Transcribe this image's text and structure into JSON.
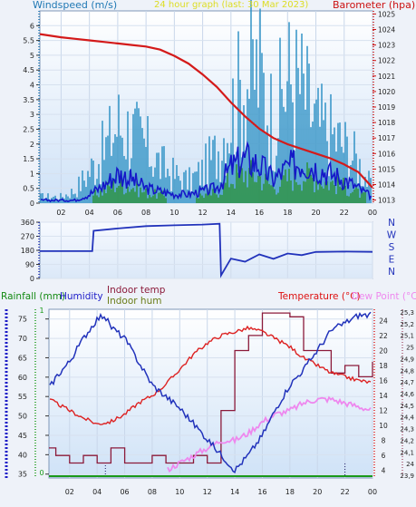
{
  "charts": {
    "wind_baro": {
      "title": "24 hour graph (last: 30 Mar 2023)",
      "left_label": "Windspeed (m/s)",
      "right_label": "Barometer (hpa)",
      "left_ticks": [
        "0",
        "0.5",
        "1",
        "1.5",
        "2",
        "2.5",
        "3",
        "3.5",
        "4",
        "4.5",
        "5",
        "5.5",
        "6"
      ],
      "right_ticks": [
        "1013",
        "1014",
        "1015",
        "1016",
        "1017",
        "1018",
        "1019",
        "1020",
        "1021",
        "1022",
        "1023",
        "1024",
        "1025"
      ],
      "x_ticks": [
        "02",
        "04",
        "06",
        "08",
        "10",
        "12",
        "14",
        "16",
        "18",
        "20",
        "22",
        "00"
      ]
    },
    "direction": {
      "left_ticks": [
        "0",
        "90",
        "180",
        "270",
        "360"
      ],
      "compass": [
        "N",
        "W",
        "S",
        "E",
        "N"
      ]
    },
    "climate": {
      "label_rainfall": "Rainfall (mm)",
      "label_humidity": "Humidity",
      "label_indoor_temp": "Indoor temp",
      "label_indoor_hum": "Indoor hum",
      "label_temperature": "Temperature (°C)",
      "label_dewpoint": "Dew Point (°C)",
      "rain_ticks": [
        "0",
        "1"
      ],
      "humidity_ticks": [
        "35",
        "40",
        "45",
        "50",
        "55",
        "60",
        "65",
        "70",
        "75"
      ],
      "temp_ticks": [
        "4",
        "6",
        "8",
        "10",
        "12",
        "14",
        "16",
        "18",
        "20",
        "22",
        "24"
      ],
      "indoor_ticks": [
        "23,9",
        "24",
        "24,1",
        "24,2",
        "24,3",
        "24,4",
        "24,5",
        "24,6",
        "24,7",
        "24,8",
        "24,9",
        "25",
        "25,1",
        "25,2",
        "25,3"
      ],
      "x_ticks": [
        "02",
        "04",
        "06",
        "08",
        "10",
        "12",
        "14",
        "16",
        "18",
        "20",
        "22",
        "00"
      ]
    }
  },
  "colors": {
    "wind_gust": "#2a8fc4",
    "wind_avg": "#1518c8",
    "wind_fill": "#1a8a1a",
    "barometer": "#d41a1a",
    "direction": "#2233bb",
    "humidity": "#2233bb",
    "temperature": "#dd2222",
    "dewpoint": "#ee88ee",
    "indoor_temp": "#8b1a3a",
    "indoor_hum": "#556b2f",
    "rain": "#1a9a1a"
  },
  "chart_data": [
    {
      "type": "line",
      "title": "24 hour graph (last: 30 Mar 2023)",
      "x_unit": "hour",
      "xlim": [
        0.5,
        24
      ],
      "ylabel": "Windspeed (m/s)",
      "ylim": [
        0,
        6.5
      ],
      "y2label": "Barometer (hpa)",
      "y2lim": [
        1012.8,
        1025.2
      ],
      "series": [
        {
          "axis": "y2",
          "x": [
            0.5,
            2,
            3,
            4,
            5,
            6,
            7,
            8,
            9,
            10,
            11,
            12,
            13,
            14,
            15,
            16,
            17,
            18,
            19,
            20,
            21,
            22,
            23,
            24
          ],
          "values": [
            1023.7,
            1023.5,
            1023.4,
            1023.3,
            1023.2,
            1023.1,
            1023.0,
            1022.9,
            1022.7,
            1022.3,
            1021.8,
            1021.1,
            1020.3,
            1019.3,
            1018.4,
            1017.6,
            1017.0,
            1016.6,
            1016.3,
            1016.0,
            1015.7,
            1015.3,
            1014.8,
            1013.8
          ]
        },
        {
          "x": [
            0.5,
            2,
            3,
            4,
            5,
            6,
            7,
            8,
            9,
            10,
            11,
            12,
            13,
            14,
            15,
            16,
            17,
            18,
            19,
            20,
            21,
            22,
            23,
            24
          ],
          "values": [
            0.1,
            0.1,
            0.1,
            0.3,
            0.6,
            1.0,
            0.8,
            0.5,
            0.4,
            0.3,
            0.3,
            0.4,
            0.5,
            1.2,
            1.5,
            1.3,
            0.8,
            1.2,
            1.4,
            1.2,
            1.0,
            0.8,
            0.5,
            0.2
          ]
        },
        {
          "x": [
            0.5,
            2,
            3,
            4,
            5,
            6,
            7,
            8,
            9,
            10,
            11,
            12,
            13,
            14,
            15,
            16,
            17,
            18,
            19,
            20,
            21,
            22,
            23,
            24
          ],
          "values": [
            0.3,
            0.3,
            0.6,
            1.5,
            2.4,
            3.7,
            3.3,
            2.6,
            1.8,
            1.3,
            1.0,
            1.5,
            2.4,
            4.2,
            5.8,
            6.2,
            3.8,
            5.8,
            5.4,
            3.7,
            3.3,
            2.7,
            1.9,
            0.6
          ]
        }
      ]
    },
    {
      "type": "line",
      "x_unit": "hour",
      "xlim": [
        0.5,
        24
      ],
      "ylim": [
        0,
        360
      ],
      "series": [
        {
          "x": [
            0.5,
            4.2,
            4.3,
            6,
            8,
            10,
            12,
            13.2,
            13.3,
            14,
            15,
            16,
            17,
            18,
            19,
            20,
            22,
            24
          ],
          "values": [
            175,
            175,
            305,
            320,
            335,
            340,
            345,
            350,
            20,
            110,
            90,
            165,
            145,
            150,
            160,
            165,
            172,
            170
          ]
        }
      ]
    },
    {
      "type": "line",
      "x_unit": "hour",
      "xlim": [
        0.5,
        24
      ],
      "ylabel": "Humidity",
      "ylim": [
        34,
        77.5
      ],
      "y2label": "Temperature (°C)",
      "y2lim": [
        3,
        25.5
      ],
      "series": [
        {
          "axis": "y1",
          "x": [
            0.5,
            1,
            2,
            3,
            4,
            4.5,
            5,
            6,
            7,
            8,
            9,
            10,
            11,
            12,
            13,
            14,
            15,
            16,
            17,
            18,
            19,
            20,
            21,
            22,
            23,
            24
          ],
          "values": [
            57,
            60,
            64,
            70,
            75,
            76,
            73,
            70,
            64,
            58,
            55,
            52,
            48,
            44,
            40,
            36,
            40,
            45,
            52,
            58,
            62,
            67,
            72,
            74,
            76,
            76
          ]
        },
        {
          "axis": "y2",
          "x": [
            0.5,
            1,
            2,
            3,
            4,
            5,
            6,
            7,
            8,
            9,
            10,
            11,
            12,
            13,
            14,
            15,
            16,
            17,
            18,
            19,
            20,
            21,
            22,
            23,
            24
          ],
          "values": [
            13.5,
            13,
            12,
            11,
            10.2,
            10.5,
            11.5,
            13,
            14,
            15.5,
            17.5,
            19.5,
            21,
            22,
            22.5,
            23,
            22.5,
            21.5,
            20.5,
            19,
            18,
            17,
            16.5,
            16,
            15.7
          ]
        },
        {
          "axis": "y2",
          "x": [
            9,
            10,
            11,
            12,
            13,
            14,
            15,
            16,
            17,
            18,
            19,
            20,
            21,
            22,
            23,
            24
          ],
          "values": [
            4,
            5,
            6,
            7,
            8,
            8,
            9,
            10.5,
            11.5,
            12,
            13,
            13.5,
            13.5,
            13,
            12.5,
            12
          ]
        },
        {
          "axis": "y2",
          "x": [
            0.5,
            1,
            2,
            3,
            4,
            5,
            6,
            7,
            8,
            9,
            10,
            11,
            12,
            13,
            14,
            15,
            16,
            17,
            18,
            19,
            20,
            21,
            22,
            23,
            24
          ],
          "values": [
            7,
            6,
            5,
            6,
            5,
            7,
            5,
            5,
            6,
            5,
            5,
            6,
            5,
            12,
            20,
            22,
            25,
            25,
            24.5,
            20,
            20,
            17,
            18,
            16.5,
            18.5
          ]
        }
      ]
    }
  ]
}
